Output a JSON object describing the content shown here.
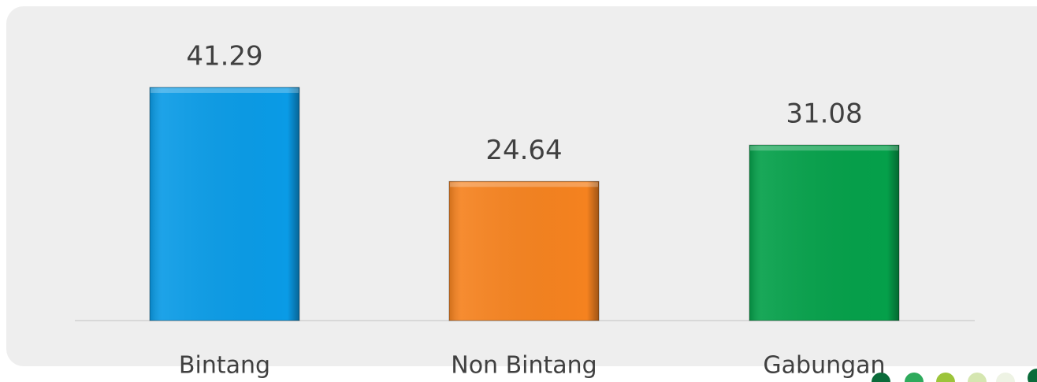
{
  "chart_data": {
    "type": "bar",
    "categories": [
      "Bintang",
      "Non Bintang",
      "Gabungan"
    ],
    "values": [
      41.29,
      24.64,
      31.08
    ],
    "colors": [
      "#0a9be6",
      "#f5821f",
      "#05a04a"
    ]
  }
}
